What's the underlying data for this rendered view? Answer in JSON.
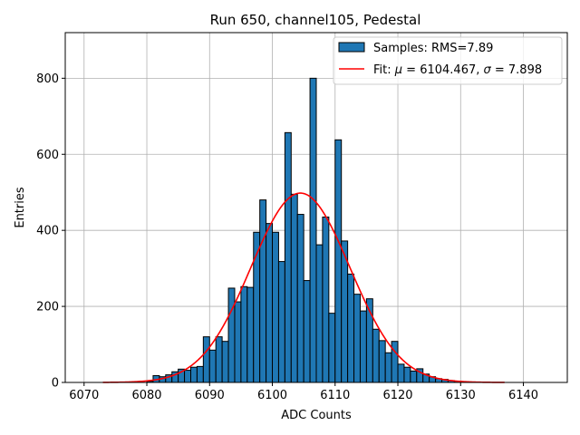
{
  "chart_data": {
    "type": "bar",
    "title": "Run 650, channel105, Pedestal",
    "xlabel": "ADC Counts",
    "ylabel": "Entries",
    "xlim": [
      6067,
      6147
    ],
    "ylim": [
      0,
      920
    ],
    "xticks": [
      6070,
      6080,
      6090,
      6100,
      6110,
      6120,
      6130,
      6140
    ],
    "yticks": [
      0,
      200,
      400,
      600,
      800
    ],
    "grid": true,
    "bin_width": 1,
    "legend": {
      "placement": "top-right",
      "hist_label": "Samples: RMS=7.89",
      "fit_label_prefix": "Fit: ",
      "fit_mu_symbol": "μ",
      "fit_mu_value": " = 6104.467, ",
      "fit_sigma_symbol": "σ",
      "fit_sigma_value": " = 7.898"
    },
    "colors": {
      "bar": "#1f77b4",
      "fit": "#ff0000"
    },
    "histogram": {
      "bin_starts": [
        6080,
        6081,
        6082,
        6083,
        6084,
        6085,
        6086,
        6087,
        6088,
        6089,
        6090,
        6091,
        6092,
        6093,
        6094,
        6095,
        6096,
        6097,
        6098,
        6099,
        6100,
        6101,
        6102,
        6103,
        6104,
        6105,
        6106,
        6107,
        6108,
        6109,
        6110,
        6111,
        6112,
        6113,
        6114,
        6115,
        6116,
        6117,
        6118,
        6119,
        6120,
        6121,
        6122,
        6123,
        6124,
        6125,
        6126,
        6127,
        6128,
        6129,
        6130,
        6131,
        6132
      ],
      "counts": [
        3,
        18,
        15,
        20,
        28,
        35,
        32,
        40,
        42,
        120,
        85,
        120,
        108,
        248,
        212,
        252,
        250,
        395,
        480,
        418,
        395,
        318,
        657,
        495,
        442,
        268,
        800,
        362,
        435,
        182,
        638,
        372,
        285,
        232,
        188,
        220,
        140,
        110,
        78,
        108,
        48,
        40,
        30,
        36,
        22,
        15,
        10,
        8,
        5,
        3,
        2,
        1,
        1
      ]
    },
    "fit": {
      "mu": 6104.467,
      "sigma": 7.898,
      "peak": 498,
      "x_range": [
        6073,
        6137
      ]
    }
  }
}
